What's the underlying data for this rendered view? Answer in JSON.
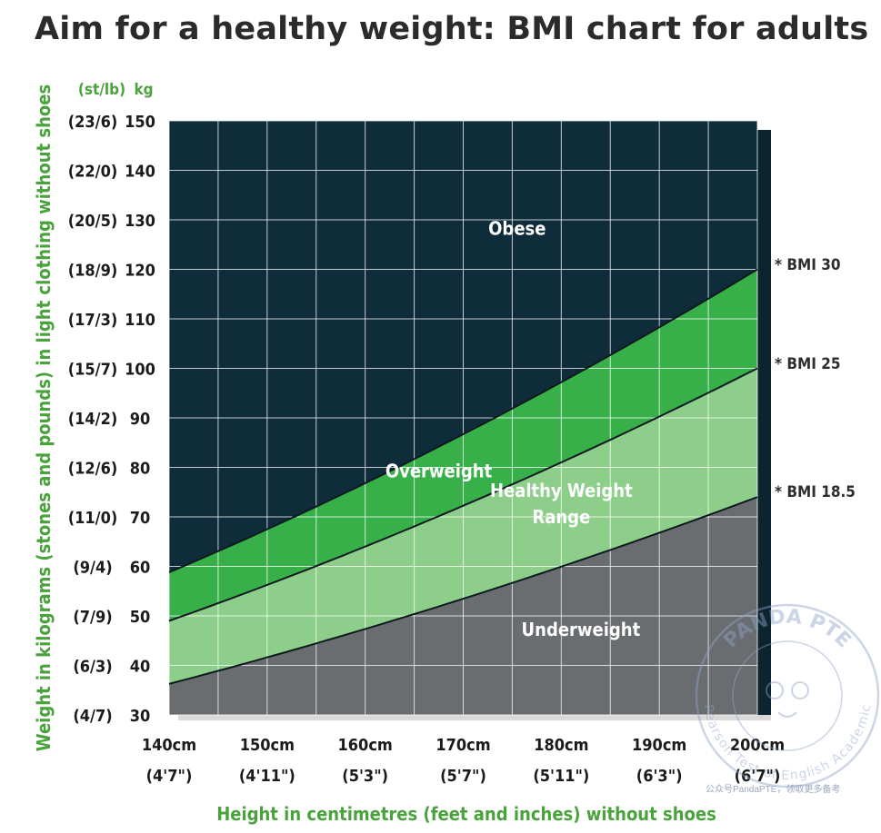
{
  "title": "Aim for a healthy weight: BMI chart for adults",
  "colors": {
    "obese": "#0f2c3a",
    "overweight": "#38b04a",
    "healthy": "#8dcf8a",
    "underweight": "#6a6d70",
    "label_green": "#4aa23c",
    "grid": "#ffffff"
  },
  "chart_data": {
    "type": "area",
    "xlabel": "Height in centimetres (feet and inches) without shoes",
    "ylabel": "Weight in kilograms (stones and pounds) in light clothing without shoes",
    "xlim": [
      140,
      200
    ],
    "ylim": [
      30,
      150
    ],
    "grid": true,
    "y_unit_headers": [
      "(st/lb)",
      "kg"
    ],
    "x_ticks": [
      {
        "value": 140,
        "cm": "140cm",
        "ft": "(4'7\")"
      },
      {
        "value": 150,
        "cm": "150cm",
        "ft": "(4'11\")"
      },
      {
        "value": 160,
        "cm": "160cm",
        "ft": "(5'3\")"
      },
      {
        "value": 170,
        "cm": "170cm",
        "ft": "(5'7\")"
      },
      {
        "value": 180,
        "cm": "180cm",
        "ft": "(5'11\")"
      },
      {
        "value": 190,
        "cm": "190cm",
        "ft": "(6'3\")"
      },
      {
        "value": 200,
        "cm": "200cm",
        "ft": "(6'7\")"
      }
    ],
    "y_ticks": [
      {
        "value": 150,
        "kg": "150",
        "st": "(23/6)"
      },
      {
        "value": 140,
        "kg": "140",
        "st": "(22/0)"
      },
      {
        "value": 130,
        "kg": "130",
        "st": "(20/5)"
      },
      {
        "value": 120,
        "kg": "120",
        "st": "(18/9)"
      },
      {
        "value": 110,
        "kg": "110",
        "st": "(17/3)"
      },
      {
        "value": 100,
        "kg": "100",
        "st": "(15/7)"
      },
      {
        "value": 90,
        "kg": "90",
        "st": "(14/2)"
      },
      {
        "value": 80,
        "kg": "80",
        "st": "(12/6)"
      },
      {
        "value": 70,
        "kg": "70",
        "st": "(11/0)"
      },
      {
        "value": 60,
        "kg": "60",
        "st": "(9/4)"
      },
      {
        "value": 50,
        "kg": "50",
        "st": "(7/9)"
      },
      {
        "value": 40,
        "kg": "40",
        "st": "(6/3)"
      },
      {
        "value": 30,
        "kg": "30",
        "st": "(4/7)"
      }
    ],
    "series": [
      {
        "name": "* BMI 30",
        "bmi": 30,
        "x": [
          140,
          150,
          160,
          170,
          180,
          190,
          200
        ],
        "values": [
          58.8,
          67.5,
          76.8,
          86.7,
          97.2,
          108.3,
          120.0
        ]
      },
      {
        "name": "* BMI 25",
        "bmi": 25,
        "x": [
          140,
          150,
          160,
          170,
          180,
          190,
          200
        ],
        "values": [
          49.0,
          56.3,
          64.0,
          72.3,
          81.0,
          90.3,
          100.0
        ]
      },
      {
        "name": "* BMI 18.5",
        "bmi": 18.5,
        "x": [
          140,
          150,
          160,
          170,
          180,
          190,
          200
        ],
        "values": [
          36.3,
          41.6,
          47.4,
          53.5,
          59.9,
          66.8,
          74.0
        ]
      }
    ],
    "regions": [
      {
        "key": "obese",
        "label": [
          "Obese"
        ],
        "x": 175.5,
        "y": 127
      },
      {
        "key": "overweight",
        "label": [
          "Overweight"
        ],
        "x": 167.5,
        "y": 78
      },
      {
        "key": "healthy",
        "label": [
          "Healthy Weight",
          "Range"
        ],
        "x": 180,
        "y": 74
      },
      {
        "key": "underweight",
        "label": [
          "Underweight"
        ],
        "x": 182,
        "y": 46
      }
    ]
  },
  "watermark": {
    "stamp_text": "PANDA PTE",
    "stamp_subtext": "Pearson Test of English Academic",
    "caption": "公众号PandaPTE，领取更多备考"
  }
}
